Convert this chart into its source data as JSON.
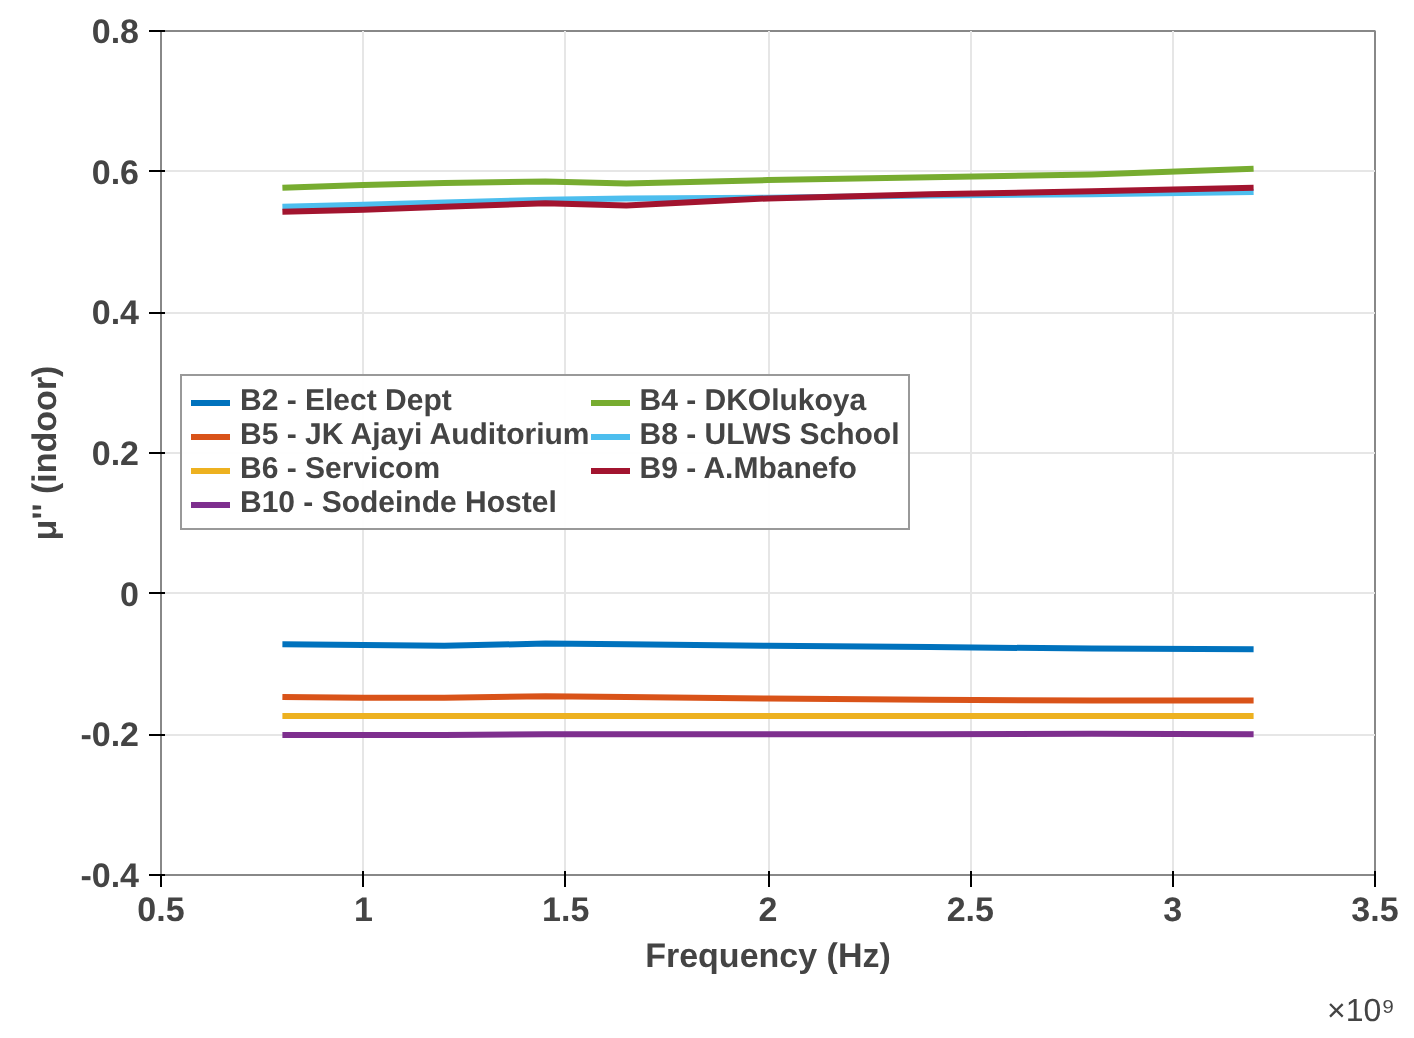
{
  "chart_data": {
    "type": "line",
    "xlabel": "Frequency (Hz)",
    "ylabel": "μ'' (indoor)",
    "annotations": [
      "×10⁹"
    ],
    "x": [
      0.8,
      1.0,
      1.2,
      1.45,
      1.65,
      2.0,
      2.4,
      2.8,
      3.2
    ],
    "series": [
      {
        "name": "B2 - Elect Dept",
        "color": "#0072bd",
        "values": [
          -0.072,
          -0.073,
          -0.074,
          -0.071,
          -0.072,
          -0.074,
          -0.076,
          -0.078,
          -0.079
        ]
      },
      {
        "name": "B5 - JK Ajayi Auditorium",
        "color": "#d95319",
        "values": [
          -0.147,
          -0.148,
          -0.148,
          -0.146,
          -0.147,
          -0.149,
          -0.151,
          -0.152,
          -0.152
        ]
      },
      {
        "name": "B6 - Servicom",
        "color": "#edb120",
        "values": [
          -0.174,
          -0.174,
          -0.174,
          -0.174,
          -0.174,
          -0.174,
          -0.174,
          -0.174,
          -0.174
        ]
      },
      {
        "name": "B10 - Sodeinde Hostel",
        "color": "#7e2f8e",
        "values": [
          -0.201,
          -0.201,
          -0.201,
          -0.2,
          -0.2,
          -0.2,
          -0.2,
          -0.199,
          -0.2
        ]
      },
      {
        "name": "B4 - DKOlukoya",
        "color": "#77ac30",
        "values": [
          0.577,
          0.581,
          0.584,
          0.586,
          0.583,
          0.588,
          0.592,
          0.596,
          0.604
        ]
      },
      {
        "name": "B8 - ULWS School",
        "color": "#4dbeee",
        "values": [
          0.55,
          0.553,
          0.556,
          0.56,
          0.562,
          0.563,
          0.566,
          0.568,
          0.571
        ]
      },
      {
        "name": "B9 - A.Mbanefo",
        "color": "#a2142f",
        "values": [
          0.543,
          0.546,
          0.55,
          0.555,
          0.552,
          0.562,
          0.568,
          0.572,
          0.577
        ]
      }
    ],
    "xlim": [
      0.5,
      3.5
    ],
    "xticks": [
      0.5,
      1,
      1.5,
      2,
      2.5,
      3,
      3.5
    ],
    "ylim": [
      -0.4,
      0.8
    ],
    "yticks": [
      -0.4,
      -0.2,
      0,
      0.2,
      0.4,
      0.6,
      0.8
    ],
    "grid": true,
    "legend": "left",
    "line_style": "solid"
  }
}
